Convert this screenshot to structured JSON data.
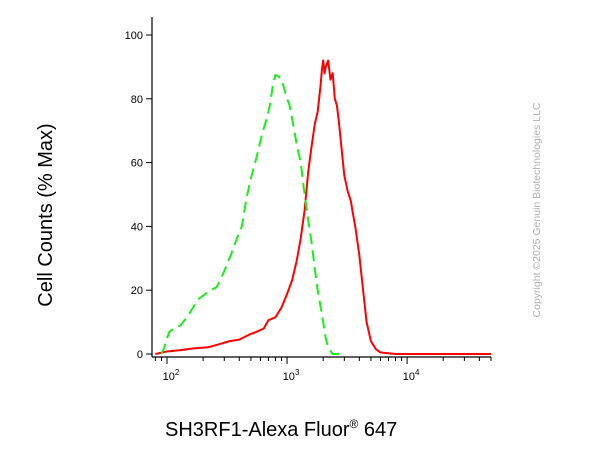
{
  "chart_data": {
    "type": "line",
    "title": "",
    "xlabel": "SH3RF1-Alexa Fluor",
    "xlabel_superscript": "®",
    "xlabel_suffix": " 647",
    "ylabel": "Cell Counts (% Max)",
    "x_scale": "log",
    "xlim": [
      75,
      50000
    ],
    "ylim": [
      0,
      100
    ],
    "y_ticks": [
      0,
      20,
      40,
      60,
      80,
      100
    ],
    "x_tick_labels": [
      {
        "base": "10",
        "exp": "2",
        "value": 100
      },
      {
        "base": "10",
        "exp": "3",
        "value": 1000
      },
      {
        "base": "10",
        "exp": "4",
        "value": 10000
      }
    ],
    "grid": false,
    "legend": "none",
    "series": [
      {
        "color": "#ff0000",
        "style": "solid",
        "points": [
          [
            80,
            0
          ],
          [
            100,
            0.8
          ],
          [
            130,
            1.2
          ],
          [
            170,
            1.8
          ],
          [
            220,
            2.1
          ],
          [
            280,
            3.2
          ],
          [
            330,
            4
          ],
          [
            400,
            4.5
          ],
          [
            480,
            6
          ],
          [
            560,
            7
          ],
          [
            640,
            8
          ],
          [
            700,
            10.6
          ],
          [
            800,
            11.5
          ],
          [
            900,
            14.6
          ],
          [
            1000,
            18.8
          ],
          [
            1100,
            23
          ],
          [
            1200,
            29
          ],
          [
            1300,
            36.2
          ],
          [
            1400,
            45
          ],
          [
            1500,
            57
          ],
          [
            1600,
            65
          ],
          [
            1700,
            71.9
          ],
          [
            1800,
            76
          ],
          [
            1900,
            84
          ],
          [
            1950,
            89
          ],
          [
            2000,
            92
          ],
          [
            2050,
            88
          ],
          [
            2100,
            90
          ],
          [
            2200,
            92
          ],
          [
            2300,
            86
          ],
          [
            2400,
            88
          ],
          [
            2500,
            80
          ],
          [
            2600,
            78
          ],
          [
            2700,
            73
          ],
          [
            2800,
            67
          ],
          [
            3000,
            56
          ],
          [
            3200,
            51
          ],
          [
            3400,
            48
          ],
          [
            3500,
            45
          ],
          [
            3700,
            40
          ],
          [
            4000,
            31
          ],
          [
            4300,
            20
          ],
          [
            4600,
            10
          ],
          [
            5000,
            4
          ],
          [
            5500,
            1.5
          ],
          [
            6000,
            0.5
          ],
          [
            8000,
            0
          ],
          [
            10000,
            0
          ],
          [
            20000,
            0
          ],
          [
            50000,
            0
          ]
        ]
      },
      {
        "color": "#1aee1a",
        "style": "dashed",
        "points": [
          [
            90,
            0
          ],
          [
            95,
            2
          ],
          [
            100,
            5
          ],
          [
            105,
            7
          ],
          [
            115,
            8
          ],
          [
            130,
            9
          ],
          [
            150,
            12
          ],
          [
            180,
            17
          ],
          [
            220,
            19.5
          ],
          [
            260,
            21
          ],
          [
            300,
            26
          ],
          [
            340,
            31
          ],
          [
            380,
            36
          ],
          [
            420,
            40
          ],
          [
            460,
            49
          ],
          [
            500,
            55
          ],
          [
            560,
            62
          ],
          [
            620,
            69
          ],
          [
            680,
            74
          ],
          [
            720,
            78
          ],
          [
            760,
            84
          ],
          [
            800,
            87.5
          ],
          [
            850,
            87
          ],
          [
            900,
            86
          ],
          [
            950,
            83
          ],
          [
            1000,
            80
          ],
          [
            1050,
            78
          ],
          [
            1100,
            74
          ],
          [
            1150,
            70
          ],
          [
            1200,
            66
          ],
          [
            1300,
            60
          ],
          [
            1400,
            50
          ],
          [
            1500,
            42
          ],
          [
            1600,
            35
          ],
          [
            1700,
            27
          ],
          [
            1800,
            20
          ],
          [
            1900,
            15
          ],
          [
            2000,
            10
          ],
          [
            2100,
            5
          ],
          [
            2200,
            2
          ],
          [
            2400,
            0
          ],
          [
            2800,
            0
          ]
        ]
      }
    ]
  },
  "copyright": "Copyright ©2025 Genuin Biotechnologies LLC"
}
